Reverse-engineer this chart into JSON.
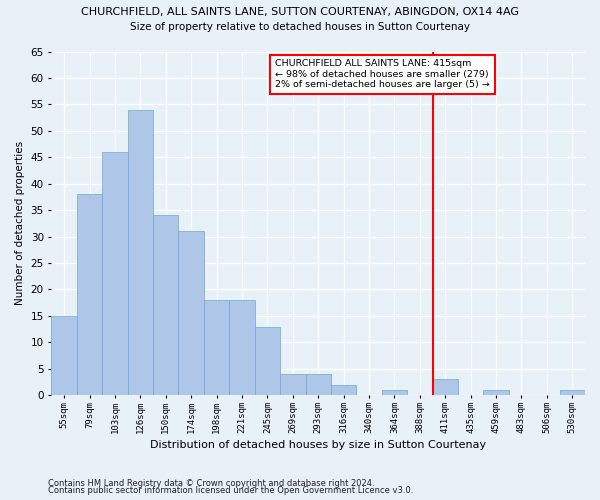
{
  "title": "CHURCHFIELD, ALL SAINTS LANE, SUTTON COURTENAY, ABINGDON, OX14 4AG",
  "subtitle": "Size of property relative to detached houses in Sutton Courtenay",
  "xlabel": "Distribution of detached houses by size in Sutton Courtenay",
  "ylabel": "Number of detached properties",
  "categories": [
    "55sqm",
    "79sqm",
    "103sqm",
    "126sqm",
    "150sqm",
    "174sqm",
    "198sqm",
    "221sqm",
    "245sqm",
    "269sqm",
    "293sqm",
    "316sqm",
    "340sqm",
    "364sqm",
    "388sqm",
    "411sqm",
    "435sqm",
    "459sqm",
    "483sqm",
    "506sqm",
    "530sqm"
  ],
  "values": [
    15,
    38,
    46,
    54,
    34,
    31,
    18,
    18,
    13,
    4,
    4,
    2,
    0,
    1,
    0,
    3,
    0,
    1,
    0,
    0,
    1
  ],
  "bar_color": "#aec6e8",
  "bar_edge_color": "#6aaad4",
  "background_color": "#e8f0f8",
  "grid_color": "#ffffff",
  "vline_idx": 15,
  "vline_color": "red",
  "annotation_title": "CHURCHFIELD ALL SAINTS LANE: 415sqm",
  "annotation_line1": "← 98% of detached houses are smaller (279)",
  "annotation_line2": "2% of semi-detached houses are larger (5) →",
  "annotation_box_color": "white",
  "annotation_box_edge": "red",
  "ylim": [
    0,
    65
  ],
  "yticks": [
    0,
    5,
    10,
    15,
    20,
    25,
    30,
    35,
    40,
    45,
    50,
    55,
    60,
    65
  ],
  "footnote1": "Contains HM Land Registry data © Crown copyright and database right 2024.",
  "footnote2": "Contains public sector information licensed under the Open Government Licence v3.0."
}
